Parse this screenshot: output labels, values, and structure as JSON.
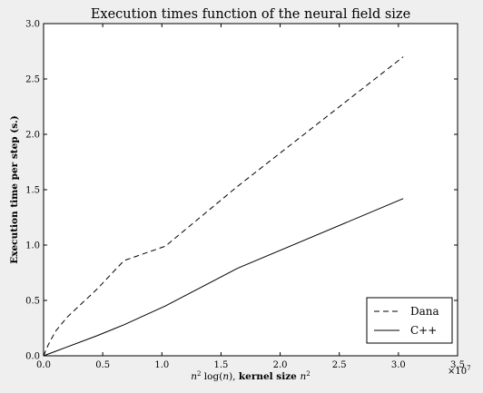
{
  "chart_data": {
    "type": "line",
    "title": "Execution times function of the neural field size",
    "xlabel_parts": [
      "n",
      "2",
      " log(",
      "n",
      "), ",
      "kernel size ",
      "n",
      "2"
    ],
    "ylabel": "Execution time per step (s.)",
    "xlim": [
      0.0,
      3.5
    ],
    "ylim": [
      0.0,
      3.0
    ],
    "x_ticks": [
      0.0,
      0.5,
      1.0,
      1.5,
      2.0,
      2.5,
      3.0,
      3.5
    ],
    "x_tick_labels": [
      "0.0",
      "0.5",
      "1.0",
      "1.5",
      "2.0",
      "2.5",
      "3.0",
      "3.5"
    ],
    "y_ticks": [
      0.0,
      0.5,
      1.0,
      1.5,
      2.0,
      2.5,
      3.0
    ],
    "y_tick_labels": [
      "0.0",
      "0.5",
      "1.0",
      "1.5",
      "2.0",
      "2.5",
      "3.0"
    ],
    "x_multiplier": "×10",
    "x_multiplier_exp": "7",
    "grid": false,
    "legend_position": "bottom-right",
    "series": [
      {
        "name": "Dana",
        "style": "dashed",
        "color": "#000000",
        "x": [
          0.0,
          0.04,
          0.1,
          0.2,
          0.45,
          0.68,
          1.03,
          1.64,
          3.04
        ],
        "y": [
          0.0,
          0.1,
          0.22,
          0.35,
          0.6,
          0.86,
          0.99,
          1.53,
          2.7
        ]
      },
      {
        "name": "C++",
        "style": "solid",
        "color": "#000000",
        "x": [
          0.0,
          0.1,
          0.2,
          0.45,
          0.68,
          1.03,
          1.64,
          3.04
        ],
        "y": [
          0.0,
          0.04,
          0.08,
          0.18,
          0.28,
          0.45,
          0.79,
          1.42
        ]
      }
    ]
  }
}
